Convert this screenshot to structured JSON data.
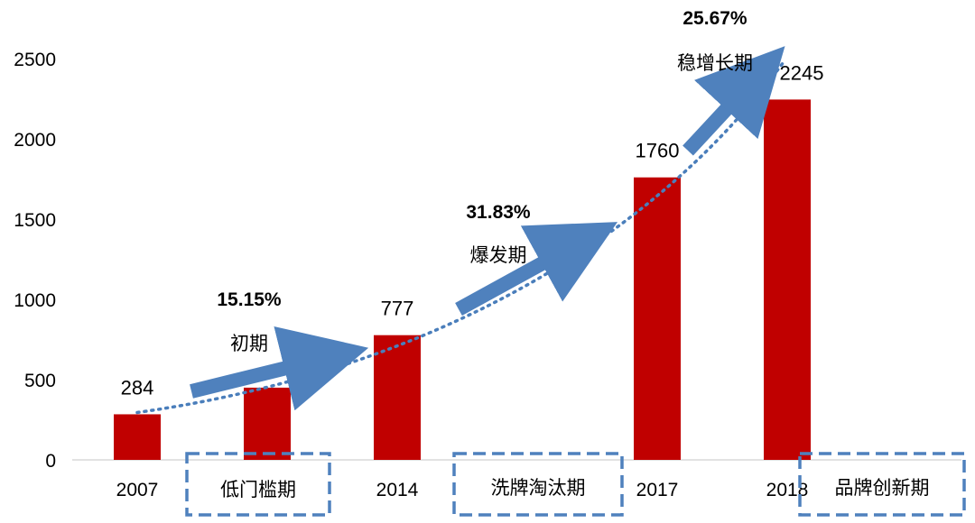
{
  "chart_data": {
    "type": "bar",
    "categories": [
      "2007",
      "",
      "2014",
      "",
      "2017",
      "2018"
    ],
    "values": [
      284,
      450,
      777,
      null,
      1760,
      2245
    ],
    "data_labels": [
      "284",
      "",
      "777",
      "",
      "1760",
      "2245"
    ],
    "yticks": [
      "0",
      "500",
      "1000",
      "1500",
      "2000",
      "2500"
    ],
    "ylim": [
      0,
      2500
    ],
    "bar_color": "#c00000",
    "trend_color": "#4a7ebb",
    "arrow_color": "#4f81bd",
    "box_color": "#4f81bd",
    "grid": false,
    "legend": "none",
    "growth_annotations": [
      {
        "rate": "15.15%",
        "phase": "初期"
      },
      {
        "rate": "31.83%",
        "phase": "爆发期"
      },
      {
        "rate": "25.67%",
        "phase": "稳增长期"
      }
    ],
    "stage_labels": [
      "低门槛期",
      "洗牌淘汰期",
      "品牌创新期"
    ]
  }
}
